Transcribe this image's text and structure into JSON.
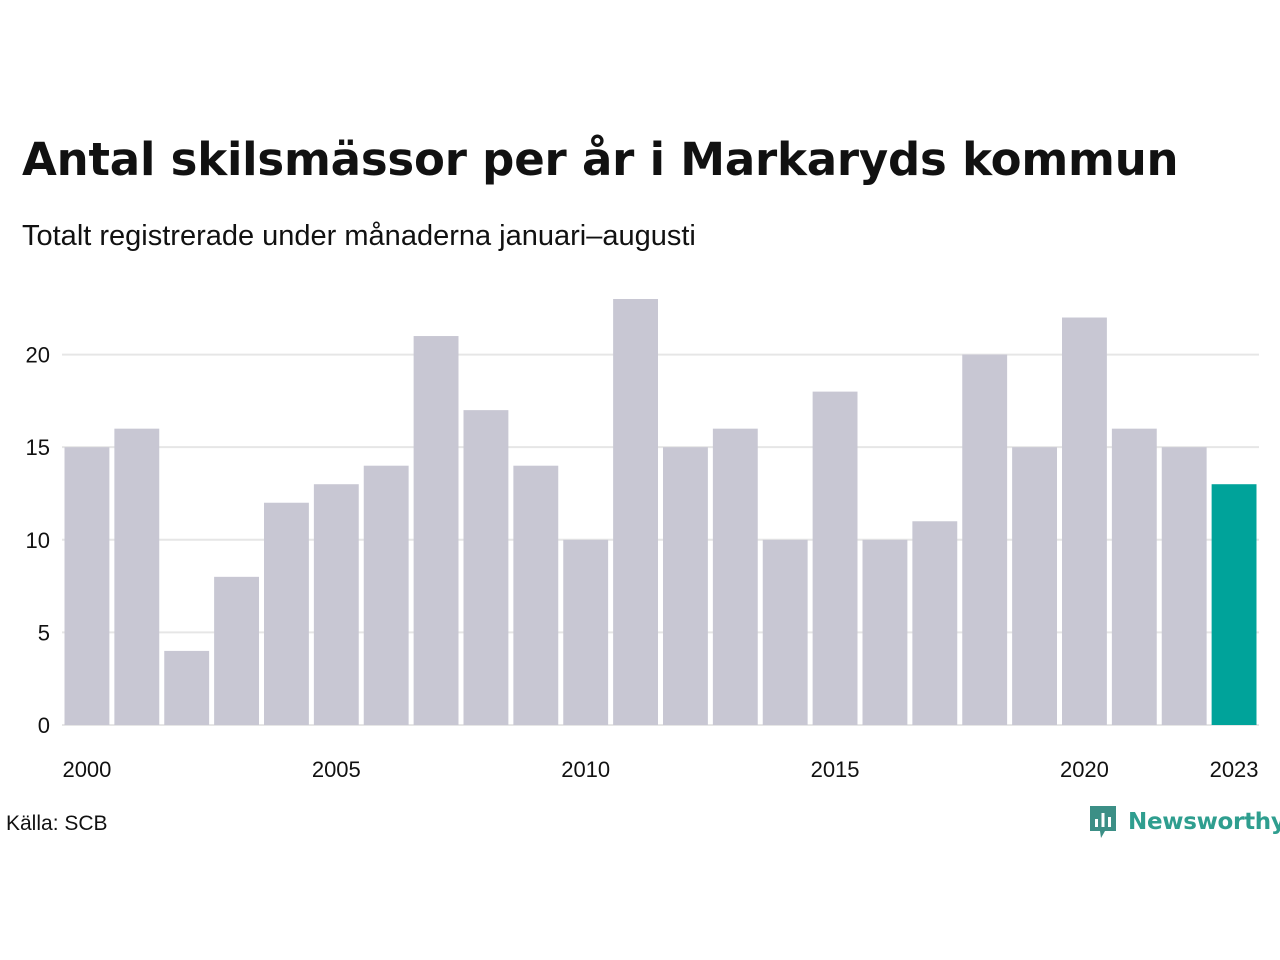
{
  "title": "Antal skilsmässor per år i Markaryds kommun",
  "subtitle": "Totalt registrerade under månaderna januari–augusti",
  "source": "Källa: SCB",
  "brand": {
    "name": "Newsworthy",
    "color": "#2f9e8f"
  },
  "colors": {
    "bar": "#c8c7d3",
    "highlight": "#00a39a",
    "grid": "#e6e6e6"
  },
  "chart_data": {
    "type": "bar",
    "categories": [
      "2000",
      "2001",
      "2002",
      "2003",
      "2004",
      "2005",
      "2006",
      "2007",
      "2008",
      "2009",
      "2010",
      "2011",
      "2012",
      "2013",
      "2014",
      "2015",
      "2016",
      "2017",
      "2018",
      "2019",
      "2020",
      "2021",
      "2022",
      "2023"
    ],
    "values": [
      15,
      16,
      4,
      8,
      12,
      13,
      14,
      21,
      17,
      14,
      10,
      23,
      15,
      16,
      10,
      18,
      10,
      11,
      20,
      15,
      22,
      16,
      15,
      13
    ],
    "highlight_index": 23,
    "x_tick_labels": [
      "2000",
      "2005",
      "2010",
      "2015",
      "2020",
      "2023"
    ],
    "y_ticks": [
      0,
      5,
      10,
      15,
      20
    ],
    "ylim": [
      0,
      23
    ],
    "grid": true,
    "legend": "none",
    "title": "Antal skilsmässor per år i Markaryds kommun",
    "xlabel": "",
    "ylabel": ""
  }
}
